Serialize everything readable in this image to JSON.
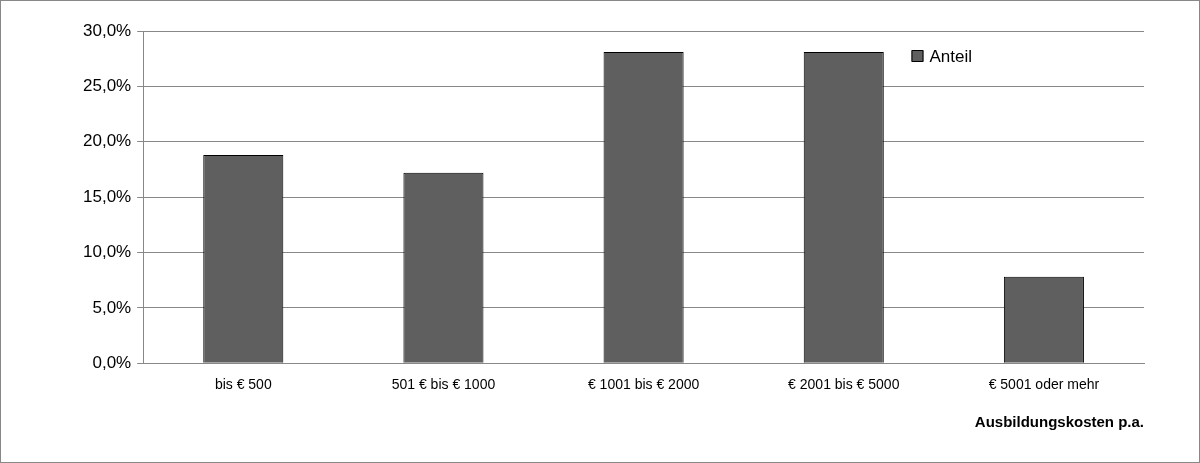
{
  "chart_data": {
    "type": "bar",
    "xlabel": "Ausbildungskosten p.a.",
    "categories": [
      "bis € 500",
      "501 € bis € 1000",
      "€ 1001 bis € 2000",
      "€ 2001 bis € 5000",
      "€ 5001 oder mehr"
    ],
    "series": [
      {
        "name": "Anteil",
        "color": "#5f5f5f",
        "values": [
          18.8,
          17.2,
          28.1,
          28.1,
          7.8
        ]
      }
    ],
    "ylim": [
      0,
      30
    ],
    "yticks": [
      {
        "value": 0,
        "label": "0,0%"
      },
      {
        "value": 5,
        "label": "5,0%"
      },
      {
        "value": 10,
        "label": "10,0%"
      },
      {
        "value": 15,
        "label": "15,0%"
      },
      {
        "value": 20,
        "label": "20,0%"
      },
      {
        "value": 25,
        "label": "25,0%"
      },
      {
        "value": 30,
        "label": "30,0%"
      }
    ],
    "grid": "y",
    "legend": "top right"
  }
}
